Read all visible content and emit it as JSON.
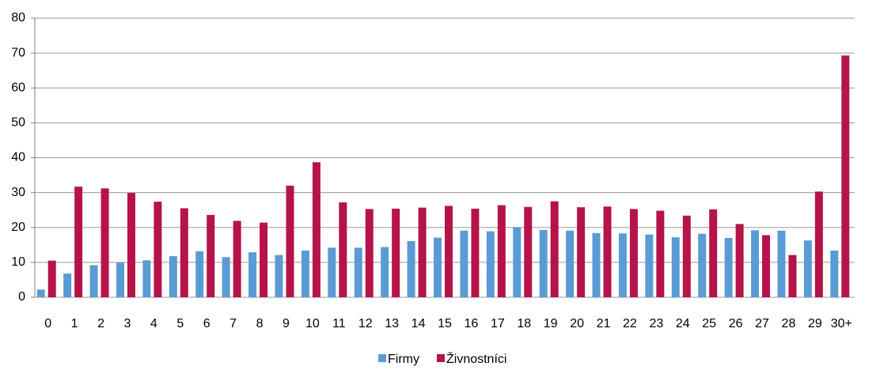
{
  "chart_data": {
    "type": "bar",
    "categories": [
      "0",
      "1",
      "2",
      "3",
      "4",
      "5",
      "6",
      "7",
      "8",
      "9",
      "10",
      "11",
      "12",
      "13",
      "14",
      "15",
      "16",
      "17",
      "18",
      "19",
      "20",
      "21",
      "22",
      "23",
      "24",
      "25",
      "26",
      "27",
      "28",
      "29",
      "30+"
    ],
    "series": [
      {
        "name": "Firmy",
        "color": "#5b9bd5",
        "values": [
          2.2,
          6.8,
          9.2,
          9.9,
          10.6,
          11.8,
          13.2,
          11.5,
          12.9,
          12.1,
          13.4,
          14.2,
          14.2,
          14.4,
          16.1,
          17.1,
          19.1,
          18.9,
          20.1,
          19.3,
          19.1,
          18.4,
          18.3,
          18.0,
          17.2,
          18.2,
          17.0,
          19.2,
          19.1,
          16.3,
          13.4
        ]
      },
      {
        "name": "Živnostníci",
        "color": "#b5134a",
        "values": [
          10.5,
          31.7,
          31.2,
          29.9,
          27.4,
          25.5,
          23.6,
          21.9,
          21.4,
          32.0,
          38.7,
          27.2,
          25.3,
          25.4,
          25.7,
          26.2,
          25.4,
          26.4,
          25.9,
          27.5,
          25.8,
          26.0,
          25.3,
          24.8,
          23.4,
          25.2,
          21.0,
          17.8,
          12.1,
          30.3,
          69.3
        ]
      }
    ],
    "ylim": [
      0,
      80
    ],
    "yticks": [
      0,
      10,
      20,
      30,
      40,
      50,
      60,
      70,
      80
    ],
    "grid": true,
    "legend": "bottom"
  }
}
